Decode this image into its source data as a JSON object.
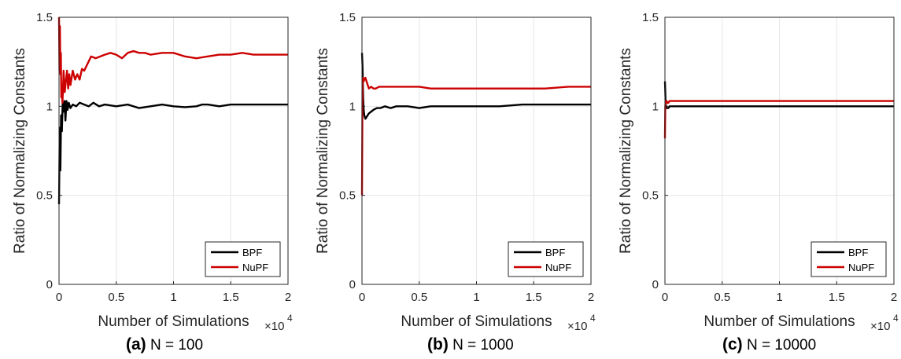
{
  "chart_data": [
    {
      "type": "line",
      "caption_letter": "(a)",
      "caption_text": "N = 100",
      "xlabel": "Number of Simulations",
      "x_multiplier": "×10",
      "x_exponent": "4",
      "ylabel": "Ratio of Normalizing Constants",
      "xlim": [
        0,
        20000
      ],
      "ylim": [
        0,
        1.5
      ],
      "xticks": [
        0,
        5000,
        10000,
        15000,
        20000
      ],
      "xtick_labels": [
        "0",
        "0.5",
        "1",
        "1.5",
        "2"
      ],
      "yticks": [
        0,
        0.5,
        1,
        1.5
      ],
      "ytick_labels": [
        "0",
        "0.5",
        "1",
        "1.5"
      ],
      "grid": true,
      "legend_position": "bottom-right",
      "series": [
        {
          "name": "BPF",
          "color": "#000000",
          "x": [
            1,
            60,
            120,
            180,
            250,
            320,
            400,
            480,
            560,
            650,
            750,
            850,
            1000,
            1200,
            1500,
            1800,
            2200,
            2600,
            3000,
            3500,
            4000,
            5000,
            6000,
            7000,
            8000,
            9000,
            10000,
            11000,
            12000,
            12500,
            13000,
            14000,
            15000,
            16000,
            17000,
            18000,
            19000,
            20000
          ],
          "y": [
            0.45,
            0.88,
            0.64,
            0.95,
            0.86,
            1.02,
            0.97,
            1.03,
            0.92,
            1.03,
            0.98,
            1.02,
            0.99,
            1.01,
            1.0,
            1.02,
            1.01,
            1.0,
            1.02,
            1.0,
            1.01,
            1.0,
            1.01,
            0.99,
            1.0,
            1.01,
            1.0,
            0.995,
            1.0,
            1.01,
            1.01,
            1.0,
            1.01,
            1.01,
            1.01,
            1.01,
            1.01,
            1.01
          ]
        },
        {
          "name": "NuPF",
          "color": "#cc0000",
          "x": [
            1,
            40,
            80,
            120,
            160,
            200,
            250,
            300,
            350,
            400,
            500,
            600,
            700,
            800,
            900,
            1000,
            1200,
            1400,
            1600,
            1800,
            2000,
            2200,
            2500,
            2800,
            3200,
            3600,
            4000,
            4500,
            5000,
            5500,
            6000,
            6500,
            7000,
            7500,
            8000,
            9000,
            10000,
            11000,
            12000,
            13000,
            14000,
            15000,
            16000,
            17000,
            18000,
            19000,
            20000
          ],
          "y": [
            1.5,
            1.2,
            1.45,
            1.18,
            1.3,
            1.05,
            1.12,
            1.02,
            1.1,
            1.2,
            1.08,
            1.14,
            1.2,
            1.1,
            1.18,
            1.12,
            1.2,
            1.15,
            1.18,
            1.15,
            1.21,
            1.2,
            1.24,
            1.28,
            1.27,
            1.28,
            1.29,
            1.3,
            1.29,
            1.27,
            1.3,
            1.31,
            1.3,
            1.3,
            1.29,
            1.3,
            1.3,
            1.28,
            1.27,
            1.28,
            1.29,
            1.29,
            1.3,
            1.29,
            1.29,
            1.29,
            1.29
          ]
        }
      ]
    },
    {
      "type": "line",
      "caption_letter": "(b)",
      "caption_text": "N = 1000",
      "xlabel": "Number of Simulations",
      "x_multiplier": "×10",
      "x_exponent": "4",
      "ylabel": "Ratio of Normalizing Constants",
      "xlim": [
        0,
        20000
      ],
      "ylim": [
        0,
        1.5
      ],
      "xticks": [
        0,
        5000,
        10000,
        15000,
        20000
      ],
      "xtick_labels": [
        "0",
        "0.5",
        "1",
        "1.5",
        "2"
      ],
      "yticks": [
        0,
        0.5,
        1,
        1.5
      ],
      "ytick_labels": [
        "0",
        "0.5",
        "1",
        "1.5"
      ],
      "grid": true,
      "legend_position": "bottom-right",
      "series": [
        {
          "name": "BPF",
          "color": "#000000",
          "x": [
            1,
            50,
            100,
            150,
            200,
            300,
            400,
            500,
            600,
            800,
            1000,
            1300,
            1600,
            2000,
            2500,
            3000,
            4000,
            5000,
            6000,
            8000,
            10000,
            12000,
            14000,
            16000,
            18000,
            20000
          ],
          "y": [
            1.3,
            1.22,
            1.05,
            0.98,
            0.95,
            0.93,
            0.94,
            0.95,
            0.96,
            0.97,
            0.98,
            0.99,
            0.99,
            1.0,
            0.99,
            1.0,
            1.0,
            0.99,
            1.0,
            1.0,
            1.0,
            1.0,
            1.01,
            1.01,
            1.01,
            1.01
          ]
        },
        {
          "name": "NuPF",
          "color": "#cc0000",
          "x": [
            1,
            50,
            100,
            150,
            200,
            300,
            400,
            500,
            600,
            800,
            1000,
            1200,
            1500,
            2000,
            2500,
            3000,
            4000,
            5000,
            6000,
            8000,
            10000,
            12000,
            14000,
            16000,
            18000,
            20000
          ],
          "y": [
            0.5,
            1.12,
            1.16,
            1.14,
            1.15,
            1.16,
            1.14,
            1.12,
            1.1,
            1.11,
            1.1,
            1.1,
            1.11,
            1.11,
            1.11,
            1.11,
            1.11,
            1.11,
            1.1,
            1.1,
            1.1,
            1.1,
            1.1,
            1.1,
            1.11,
            1.11
          ]
        }
      ]
    },
    {
      "type": "line",
      "caption_letter": "(c)",
      "caption_text": "N = 10000",
      "xlabel": "Number of Simulations",
      "x_multiplier": "×10",
      "x_exponent": "4",
      "ylabel": "Ratio of Normalizing Constants",
      "xlim": [
        0,
        20000
      ],
      "ylim": [
        0,
        1.5
      ],
      "xticks": [
        0,
        5000,
        10000,
        15000,
        20000
      ],
      "xtick_labels": [
        "0",
        "0.5",
        "1",
        "1.5",
        "2"
      ],
      "yticks": [
        0,
        0.5,
        1,
        1.5
      ],
      "ytick_labels": [
        "0",
        "0.5",
        "1",
        "1.5"
      ],
      "grid": true,
      "legend_position": "bottom-right",
      "series": [
        {
          "name": "BPF",
          "color": "#000000",
          "x": [
            1,
            30,
            60,
            100,
            150,
            200,
            300,
            400,
            600,
            1000,
            2000,
            4000,
            6000,
            10000,
            15000,
            20000
          ],
          "y": [
            1.14,
            1.08,
            1.02,
            1.0,
            0.99,
            0.99,
            0.99,
            1.0,
            1.0,
            1.0,
            1.0,
            1.0,
            1.0,
            1.0,
            1.0,
            1.0
          ]
        },
        {
          "name": "NuPF",
          "color": "#cc0000",
          "x": [
            1,
            30,
            60,
            100,
            150,
            200,
            300,
            400,
            600,
            1000,
            2000,
            4000,
            6000,
            10000,
            15000,
            20000
          ],
          "y": [
            0.82,
            1.0,
            1.02,
            1.03,
            1.03,
            1.02,
            1.02,
            1.03,
            1.03,
            1.03,
            1.03,
            1.03,
            1.03,
            1.03,
            1.03,
            1.03
          ]
        }
      ]
    }
  ]
}
